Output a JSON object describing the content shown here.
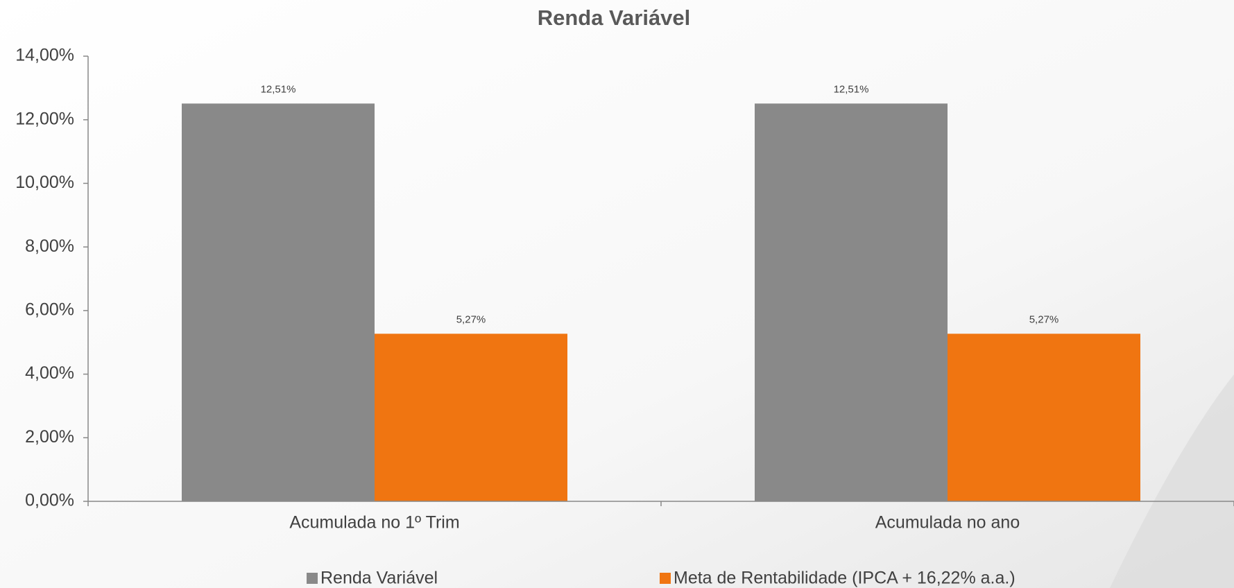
{
  "chart_data": {
    "type": "bar",
    "title": "Renda Variável",
    "categories": [
      "Acumulada no 1º Trim",
      "Acumulada no ano"
    ],
    "series": [
      {
        "name": "Renda Variável",
        "color": "#898989",
        "values": [
          12.51,
          12.51
        ],
        "value_labels": [
          "12,51%",
          "12,51%"
        ]
      },
      {
        "name": "Meta de Rentabilidade (IPCA + 16,22% a.a.)",
        "color": "#f07511",
        "values": [
          5.27,
          5.27
        ],
        "value_labels": [
          "5,27%",
          "5,27%"
        ]
      }
    ],
    "ylim": [
      0,
      14
    ],
    "yticks": [
      {
        "value": 0,
        "label": "0,00%"
      },
      {
        "value": 2,
        "label": "2,00%"
      },
      {
        "value": 4,
        "label": "4,00%"
      },
      {
        "value": 6,
        "label": "6,00%"
      },
      {
        "value": 8,
        "label": "8,00%"
      },
      {
        "value": 10,
        "label": "10,00%"
      },
      {
        "value": 12,
        "label": "12,00%"
      },
      {
        "value": 14,
        "label": "14,00%"
      }
    ],
    "legend": "bottom"
  }
}
